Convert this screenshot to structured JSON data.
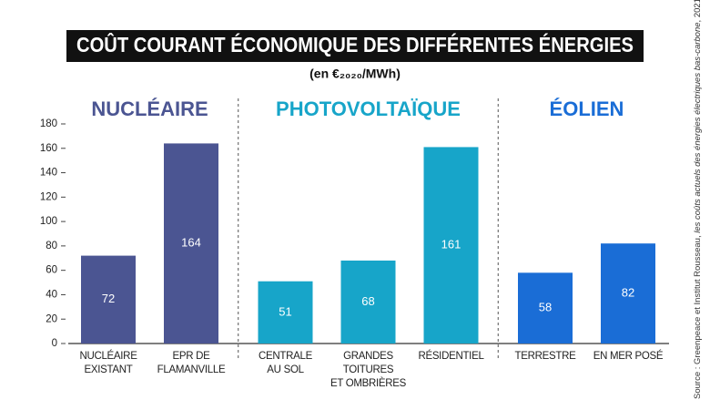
{
  "chart_data": {
    "type": "bar",
    "title": "COÛT COURANT ÉCONOMIQUE DES DIFFÉRENTES ÉNERGIES",
    "subtitle": "(en €₂₀₂₀/MWh)",
    "source": [
      "Source : Greenpeace et Institut Rousseau, ",
      "les coûts actuels des énergies électriques bas-carbone",
      ", 2021"
    ],
    "ylim": [
      0,
      180
    ],
    "yticks": [
      0,
      20,
      40,
      60,
      80,
      100,
      120,
      140,
      160,
      180
    ],
    "series": [
      {
        "name": "NUCLÉAIRE",
        "color": "#4b5592",
        "categories": [
          "NUCLÉAIRE\nEXISTANT",
          "EPR DE\nFLAMANVILLE"
        ],
        "values": [
          72,
          164
        ]
      },
      {
        "name": "PHOTOVOLTAÏQUE",
        "color": "#17a5c9",
        "categories": [
          "CENTRALE\nAU SOL",
          "GRANDES TOITURES\nET OMBRIÈRES",
          "RÉSIDENTIEL"
        ],
        "values": [
          51,
          68,
          161
        ]
      },
      {
        "name": "ÉOLIEN",
        "color": "#1a6dd6",
        "categories": [
          "TERRESTRE",
          "EN MER POSÉ"
        ],
        "values": [
          58,
          82
        ]
      }
    ]
  }
}
